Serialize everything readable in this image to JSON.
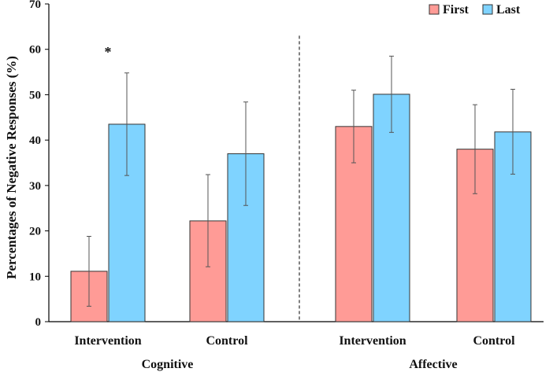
{
  "chart_data": {
    "type": "bar",
    "title": "",
    "ylabel": "Percentages  of Negative Responses (%)",
    "xlabel": "",
    "ylim": [
      0,
      70
    ],
    "yticks": [
      0,
      10,
      20,
      30,
      40,
      50,
      60,
      70
    ],
    "grid": false,
    "legend_position": "top-right",
    "groups": [
      {
        "name": "Cognitive",
        "categories": [
          "Intervention",
          "Control"
        ]
      },
      {
        "name": "Affective",
        "categories": [
          "Intervention",
          "Control"
        ]
      }
    ],
    "categories": [
      "Intervention",
      "Control",
      "Intervention",
      "Control"
    ],
    "series": [
      {
        "name": "First",
        "color": "#ff9b96",
        "values": [
          11.1,
          22.2,
          43.0,
          38.0
        ],
        "err_low": [
          3.4,
          12.1,
          35.0,
          28.2
        ],
        "err_high": [
          18.8,
          32.4,
          51.0,
          47.8
        ]
      },
      {
        "name": "Last",
        "color": "#7fd3ff",
        "values": [
          43.5,
          37.0,
          50.1,
          41.8
        ],
        "err_low": [
          32.2,
          25.6,
          41.7,
          32.5
        ],
        "err_high": [
          54.8,
          48.4,
          58.5,
          51.2
        ]
      }
    ],
    "annotations": [
      {
        "text": "*",
        "category_index": 0
      }
    ],
    "divider_between_groups": true
  }
}
